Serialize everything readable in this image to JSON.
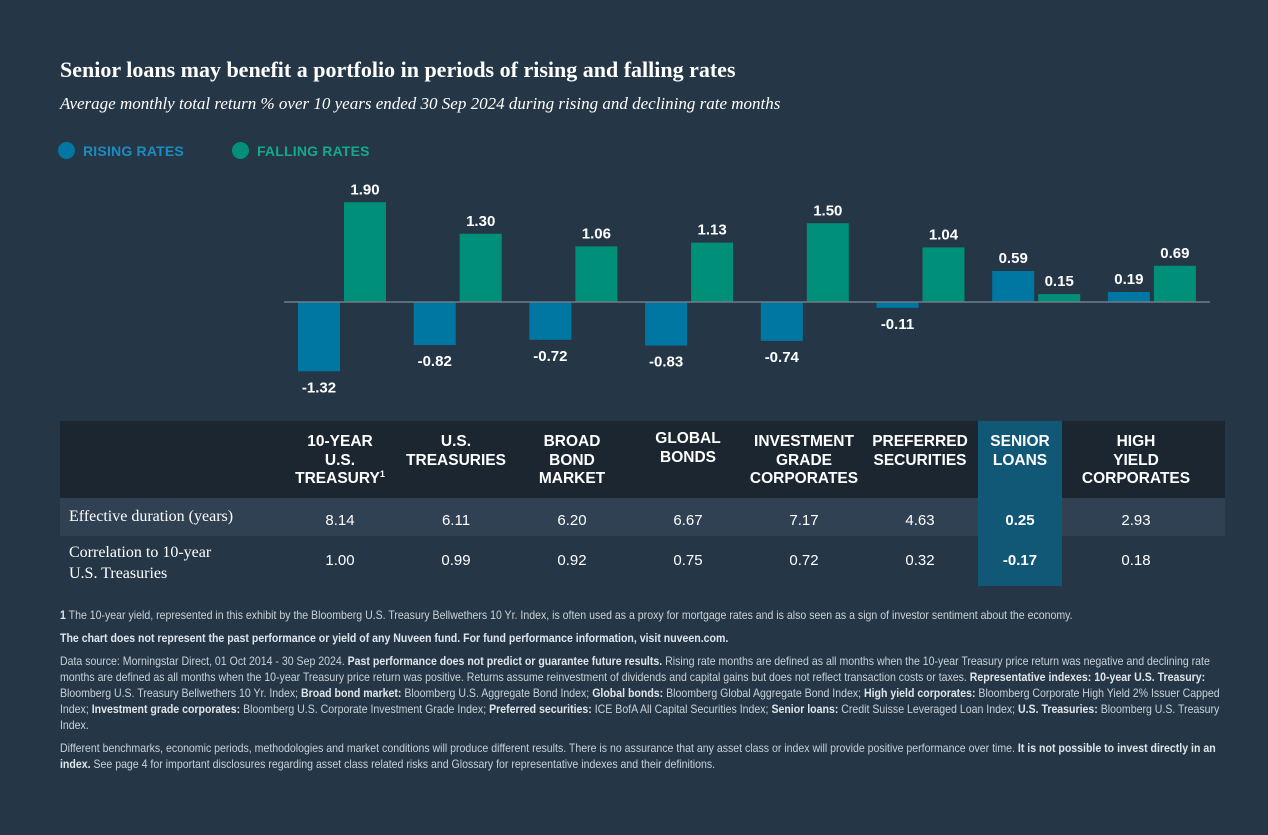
{
  "title": "Senior loans may benefit a portfolio in periods of rising and falling rates",
  "subtitle": "Average monthly total return % over 10 years ended 30 Sep 2024 during rising and declining rate months",
  "legend": {
    "rising": "RISING RATES",
    "falling": "FALLING RATES"
  },
  "colors": {
    "rising": "#0077a3",
    "falling": "#00907a",
    "highlight": "#115877",
    "background": "#253746"
  },
  "chart_data": {
    "type": "bar",
    "categories": [
      "10-Year U.S. Treasury",
      "U.S. Treasuries",
      "Broad Bond Market",
      "Global Bonds",
      "Investment Grade Corporates",
      "Preferred Securities",
      "Senior Loans",
      "High Yield Corporates"
    ],
    "series": [
      {
        "name": "RISING RATES",
        "values": [
          -1.32,
          -0.82,
          -0.72,
          -0.83,
          -0.74,
          -0.11,
          0.59,
          0.19
        ]
      },
      {
        "name": "FALLING RATES",
        "values": [
          1.9,
          1.3,
          1.06,
          1.13,
          1.5,
          1.04,
          0.15,
          0.69
        ]
      }
    ],
    "labels": {
      "rising": [
        "-1.32",
        "-0.82",
        "-0.72",
        "-0.83",
        "-0.74",
        "-0.11",
        "0.59",
        "0.19"
      ],
      "falling": [
        "1.90",
        "1.30",
        "1.06",
        "1.13",
        "1.50",
        "1.04",
        "0.15",
        "0.69"
      ]
    },
    "ylim": [
      -1.5,
      2.1
    ],
    "title": "Senior loans may benefit a portfolio in periods of rising and falling rates",
    "xlabel": "",
    "ylabel": ""
  },
  "table": {
    "headers": [
      {
        "line1": "10-YEAR",
        "line2": "U.S.",
        "line3": "TREASURY",
        "sup": "1"
      },
      {
        "line1": "U.S.",
        "line2": "TREASURIES",
        "line3": ""
      },
      {
        "line1": "BROAD",
        "line2": "BOND",
        "line3": "MARKET"
      },
      {
        "line1": "GLOBAL",
        "line2": "BONDS",
        "line3": ""
      },
      {
        "line1": "INVESTMENT",
        "line2": "GRADE",
        "line3": "CORPORATES"
      },
      {
        "line1": "PREFERRED",
        "line2": "SECURITIES",
        "line3": ""
      },
      {
        "line1": "SENIOR",
        "line2": "LOANS",
        "line3": ""
      },
      {
        "line1": "HIGH",
        "line2": "YIELD",
        "line3": "CORPORATES"
      }
    ],
    "rows": [
      {
        "label": "Effective duration (years)",
        "values": [
          "8.14",
          "6.11",
          "6.20",
          "6.67",
          "7.17",
          "4.63",
          "0.25",
          "2.93"
        ]
      },
      {
        "label_line1": "Correlation to 10-year",
        "label_line2": "U.S. Treasuries",
        "values": [
          "1.00",
          "0.99",
          "0.92",
          "0.75",
          "0.72",
          "0.32",
          "-0.17",
          "0.18"
        ]
      }
    ]
  },
  "notes": {
    "footnote_num": "1",
    "footnote": "The 10-year yield, represented in this exhibit by the Bloomberg U.S. Treasury Bellwethers 10 Yr. Index, is often used as a proxy for mortgage rates and is also seen as a sign of investor sentiment about the economy.",
    "disclaimer": "The chart does not represent the past performance or yield of any Nuveen fund. For fund performance information, visit nuveen.com.",
    "source_a": "Data source: Morningstar Direct, 01 Oct 2014 - 30 Sep 2024.",
    "source_b": "Past performance does not predict or guarantee future results.",
    "source_c": "Rising rate months are defined as all months when the 10-year Treasury price return was negative and declining rate months are defined as all months when the 10-year Treasury price return was positive. Returns assume reinvestment of dividends and capital gains but does not reflect transaction costs or taxes.",
    "source_d": "Representative indexes: 10-year U.S. Treasury:",
    "source_e": "Bloomberg U.S. Treasury Bellwethers 10 Yr. Index;",
    "source_f": "Broad bond market:",
    "source_g": "Bloomberg U.S. Aggregate Bond Index;",
    "source_h": "Global bonds:",
    "source_i": "Bloomberg Global Aggregate Bond Index;",
    "source_j": "High yield corporates:",
    "source_k": "Bloomberg Corporate High Yield 2% Issuer Capped Index;",
    "source_l": "Investment grade corporates:",
    "source_m": "Bloomberg U.S. Corporate Investment Grade Index;",
    "source_n": "Preferred securities:",
    "source_o": "ICE BofA All Capital Securities Index;",
    "source_p": "Senior loans:",
    "source_q": "Credit Suisse Leveraged Loan Index;",
    "source_r": "U.S. Treasuries:",
    "source_s": "Bloomberg U.S. Treasury Index.",
    "final_a": "Different benchmarks, economic periods, methodologies and market conditions will produce different results. There is no assurance that any asset class or index will provide positive performance over time.",
    "final_b": "It is not possible to invest directly in an index.",
    "final_c": "See page 4 for important disclosures regarding asset class related risks and Glossary for representative indexes and their definitions."
  }
}
